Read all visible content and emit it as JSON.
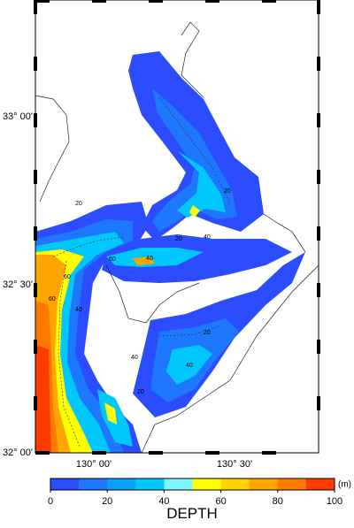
{
  "map": {
    "lat_labels": [
      "33° 00'",
      "32° 30'",
      "32° 00'"
    ],
    "lon_labels": [
      "130° 00'",
      "130° 30'"
    ],
    "contour_labels": [
      "20",
      "20",
      "40",
      "60",
      "40",
      "60",
      "40",
      "20",
      "40",
      "60",
      "20",
      "40",
      "20"
    ]
  },
  "colorbar": {
    "title": "DEPTH",
    "unit": "(m)",
    "range": [
      0,
      100
    ],
    "ticks": [
      0,
      20,
      40,
      60,
      80,
      100
    ],
    "colors": [
      "#2b4cff",
      "#1e78ff",
      "#0aa0ff",
      "#00c8ff",
      "#7ff5ff",
      "#ffff00",
      "#ffd200",
      "#ffa500",
      "#ff7800",
      "#ff3c00"
    ]
  }
}
